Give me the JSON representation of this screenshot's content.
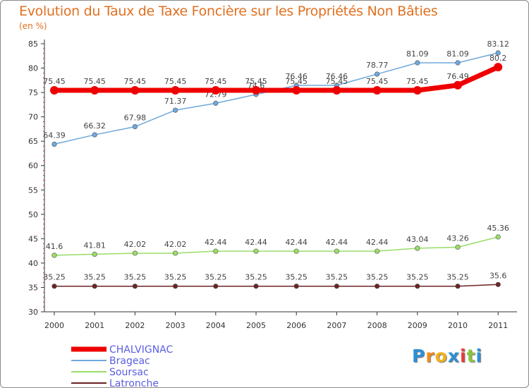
{
  "chart_data": {
    "type": "line",
    "title": "Evolution du Taux de Taxe Foncière sur les Propriétés Non Bâties",
    "subtitle": "(en %)",
    "x": [
      "2000",
      "2001",
      "2002",
      "2003",
      "2004",
      "2005",
      "2006",
      "2007",
      "2008",
      "2009",
      "2010",
      "2011"
    ],
    "ylim": [
      30,
      85
    ],
    "yticks": [
      "30",
      "35",
      "40",
      "45",
      "50",
      "55",
      "60",
      "65",
      "70",
      "75",
      "80",
      "85"
    ],
    "series": [
      {
        "name": "Latronche",
        "color": "#6b2424",
        "values": [
          35.25,
          35.25,
          35.25,
          35.25,
          35.25,
          35.25,
          35.25,
          35.25,
          35.25,
          35.25,
          35.25,
          35.6
        ],
        "labels": [
          "35.25",
          "35.25",
          "35.25",
          "35.25",
          "35.25",
          "35.25",
          "35.25",
          "35.25",
          "35.25",
          "35.25",
          "35.25",
          "35.6"
        ]
      },
      {
        "name": "Soursac",
        "color": "#99dd66",
        "values": [
          41.6,
          41.81,
          42.02,
          42.02,
          42.44,
          42.44,
          42.44,
          42.44,
          42.44,
          43.04,
          43.26,
          45.36
        ],
        "labels": [
          "41.6",
          "41.81",
          "42.02",
          "42.02",
          "42.44",
          "42.44",
          "42.44",
          "42.44",
          "42.44",
          "43.04",
          "43.26",
          "45.36"
        ]
      },
      {
        "name": "Brageac",
        "color": "#6fa8dc",
        "values": [
          64.39,
          66.32,
          67.98,
          71.37,
          72.79,
          74.6,
          76.46,
          76.46,
          78.77,
          81.09,
          81.09,
          83.12
        ],
        "labels": [
          "64.39",
          "66.32",
          "67.98",
          "71.37",
          "72.79",
          "74.6",
          "76.46",
          "76.46",
          "78.77",
          "81.09",
          "81.09",
          "83.12"
        ]
      },
      {
        "name": "CHALVIGNAC",
        "color": "#ee0000",
        "values": [
          75.45,
          75.45,
          75.45,
          75.45,
          75.45,
          75.45,
          75.45,
          75.45,
          75.45,
          75.45,
          76.49,
          80.2
        ],
        "labels": [
          "75.45",
          "75.45",
          "75.45",
          "75.45",
          "75.45",
          "75.45",
          "75.45",
          "75.45",
          "75.45",
          "75.45",
          "76.49",
          "80.2"
        ]
      }
    ],
    "legend": [
      "CHALVIGNAC",
      "Brageac",
      "Soursac",
      "Latronche"
    ]
  },
  "logo": {
    "letters": [
      "P",
      "r",
      "o",
      "x",
      "i",
      "t",
      "i"
    ],
    "colors": [
      "#2e8fd6",
      "#f28a1c",
      "#f2b21c",
      "#2e8fd6",
      "#e83c3c",
      "#8cc63f",
      "#2e8fd6"
    ]
  }
}
